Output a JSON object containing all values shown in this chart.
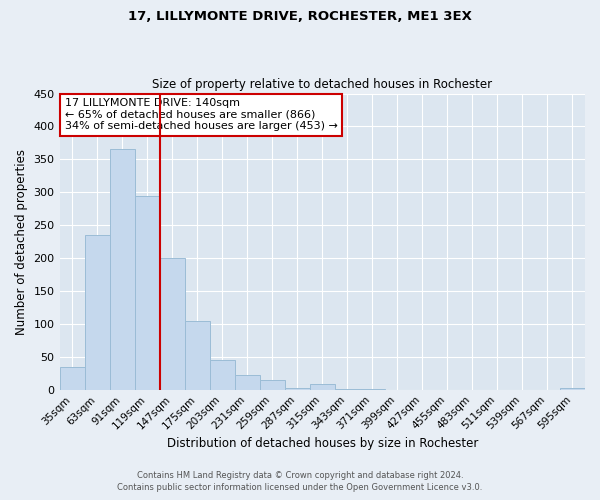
{
  "title": "17, LILLYMONTE DRIVE, ROCHESTER, ME1 3EX",
  "subtitle": "Size of property relative to detached houses in Rochester",
  "xlabel": "Distribution of detached houses by size in Rochester",
  "ylabel": "Number of detached properties",
  "bar_labels": [
    "35sqm",
    "63sqm",
    "91sqm",
    "119sqm",
    "147sqm",
    "175sqm",
    "203sqm",
    "231sqm",
    "259sqm",
    "287sqm",
    "315sqm",
    "343sqm",
    "371sqm",
    "399sqm",
    "427sqm",
    "455sqm",
    "483sqm",
    "511sqm",
    "539sqm",
    "567sqm",
    "595sqm"
  ],
  "bar_values": [
    35,
    235,
    365,
    295,
    200,
    105,
    45,
    23,
    15,
    3,
    9,
    1,
    1,
    0,
    0,
    0,
    0,
    0,
    0,
    0,
    2
  ],
  "bar_color": "#c5d8ed",
  "bar_edge_color": "#9bbcd6",
  "vline_color": "#cc0000",
  "annotation_text": "17 LILLYMONTE DRIVE: 140sqm\n← 65% of detached houses are smaller (866)\n34% of semi-detached houses are larger (453) →",
  "annotation_box_color": "#cc0000",
  "ylim": [
    0,
    450
  ],
  "yticks": [
    0,
    50,
    100,
    150,
    200,
    250,
    300,
    350,
    400,
    450
  ],
  "footer1": "Contains HM Land Registry data © Crown copyright and database right 2024.",
  "footer2": "Contains public sector information licensed under the Open Government Licence v3.0.",
  "bg_color": "#e8eef5",
  "plot_bg_color": "#dce6f0"
}
